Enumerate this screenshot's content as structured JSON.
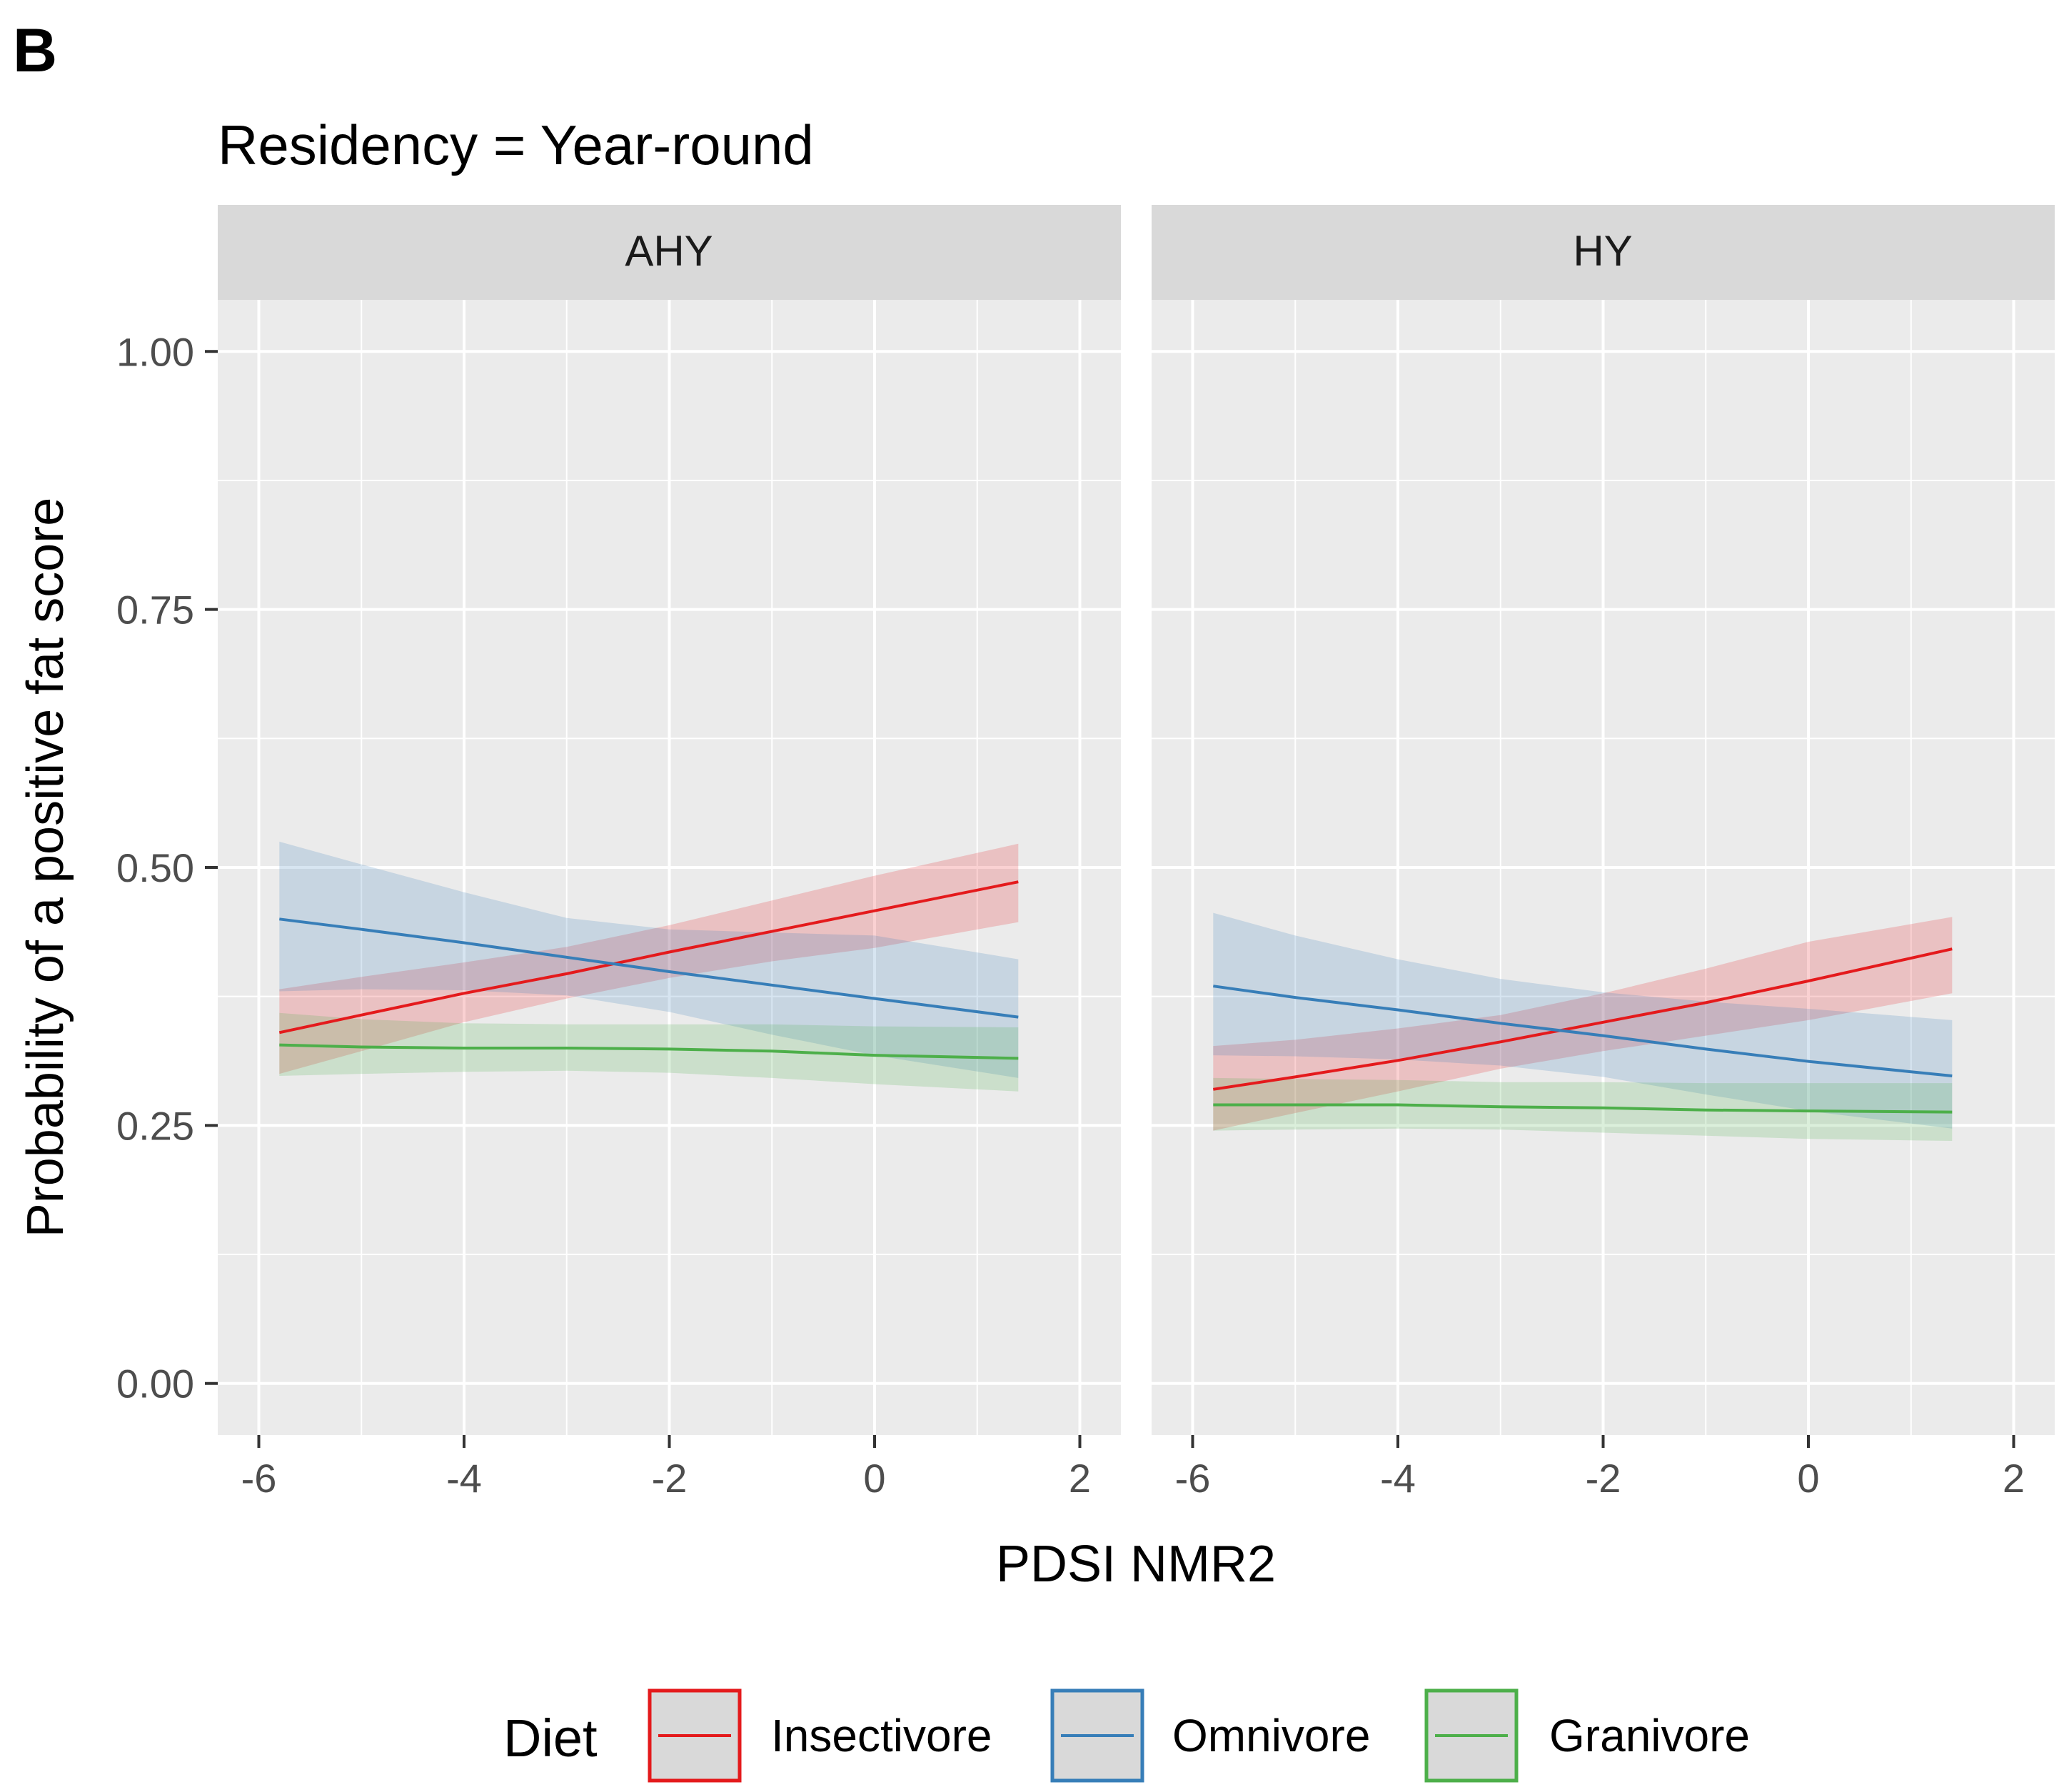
{
  "chart_data": {
    "type": "line",
    "panel_label": "B",
    "title": "Residency = Year-round",
    "xlabel": "PDSI NMR2",
    "ylabel": "Probability of a positive fat score",
    "xlim": [
      -6.4,
      2.4
    ],
    "ylim": [
      -0.05,
      1.05
    ],
    "x_ticks": [
      -6,
      -4,
      -2,
      0,
      2
    ],
    "x_tick_labels": [
      "-6",
      "-4",
      "-2",
      "0",
      "2"
    ],
    "y_ticks": [
      0,
      0.25,
      0.5,
      0.75,
      1.0
    ],
    "y_tick_labels": [
      "0.00",
      "0.25",
      "0.50",
      "0.75",
      "1.00"
    ],
    "grid": true,
    "legend": {
      "title": "Diet",
      "position": "bottom",
      "entries": [
        "Insectivore",
        "Omnivore",
        "Granivore"
      ]
    },
    "colors": {
      "Insectivore": "#e41a1c",
      "Omnivore": "#377eb8",
      "Granivore": "#4daf4a",
      "panel_bg": "#ebebeb",
      "strip_bg": "#d9d9d9"
    },
    "x": [
      -5.8,
      -5.0,
      -4.0,
      -3.0,
      -2.0,
      -1.0,
      0.0,
      1.4
    ],
    "facets": [
      {
        "strip": "AHY",
        "series": [
          {
            "name": "Insectivore",
            "values": [
              0.34,
              0.357,
              0.378,
              0.397,
              0.418,
              0.438,
              0.458,
              0.486
            ],
            "lower": [
              0.3,
              0.322,
              0.35,
              0.373,
              0.393,
              0.409,
              0.422,
              0.447
            ],
            "upper": [
              0.382,
              0.394,
              0.408,
              0.423,
              0.444,
              0.468,
              0.492,
              0.523
            ]
          },
          {
            "name": "Omnivore",
            "values": [
              0.45,
              0.44,
              0.427,
              0.413,
              0.399,
              0.386,
              0.373,
              0.355
            ],
            "lower": [
              0.38,
              0.382,
              0.381,
              0.376,
              0.36,
              0.338,
              0.318,
              0.296
            ],
            "upper": [
              0.525,
              0.503,
              0.476,
              0.451,
              0.44,
              0.437,
              0.434,
              0.411
            ]
          },
          {
            "name": "Granivore",
            "values": [
              0.328,
              0.326,
              0.325,
              0.325,
              0.324,
              0.322,
              0.318,
              0.315
            ],
            "lower": [
              0.298,
              0.3,
              0.302,
              0.303,
              0.301,
              0.296,
              0.29,
              0.283
            ],
            "upper": [
              0.359,
              0.353,
              0.349,
              0.348,
              0.348,
              0.348,
              0.346,
              0.345
            ]
          }
        ]
      },
      {
        "strip": "HY",
        "series": [
          {
            "name": "Insectivore",
            "values": [
              0.285,
              0.297,
              0.313,
              0.331,
              0.35,
              0.369,
              0.39,
              0.421
            ],
            "lower": [
              0.245,
              0.262,
              0.283,
              0.305,
              0.322,
              0.337,
              0.352,
              0.378
            ],
            "upper": [
              0.327,
              0.333,
              0.344,
              0.357,
              0.378,
              0.402,
              0.428,
              0.452
            ]
          },
          {
            "name": "Omnivore",
            "values": [
              0.385,
              0.374,
              0.362,
              0.349,
              0.337,
              0.324,
              0.312,
              0.298
            ],
            "lower": [
              0.318,
              0.317,
              0.314,
              0.308,
              0.297,
              0.28,
              0.264,
              0.247
            ],
            "upper": [
              0.456,
              0.434,
              0.411,
              0.392,
              0.379,
              0.37,
              0.363,
              0.352
            ]
          },
          {
            "name": "Granivore",
            "values": [
              0.27,
              0.27,
              0.27,
              0.268,
              0.267,
              0.265,
              0.264,
              0.263
            ],
            "lower": [
              0.245,
              0.246,
              0.247,
              0.246,
              0.243,
              0.24,
              0.237,
              0.235
            ],
            "upper": [
              0.296,
              0.295,
              0.294,
              0.292,
              0.292,
              0.291,
              0.291,
              0.291
            ]
          }
        ]
      }
    ]
  }
}
